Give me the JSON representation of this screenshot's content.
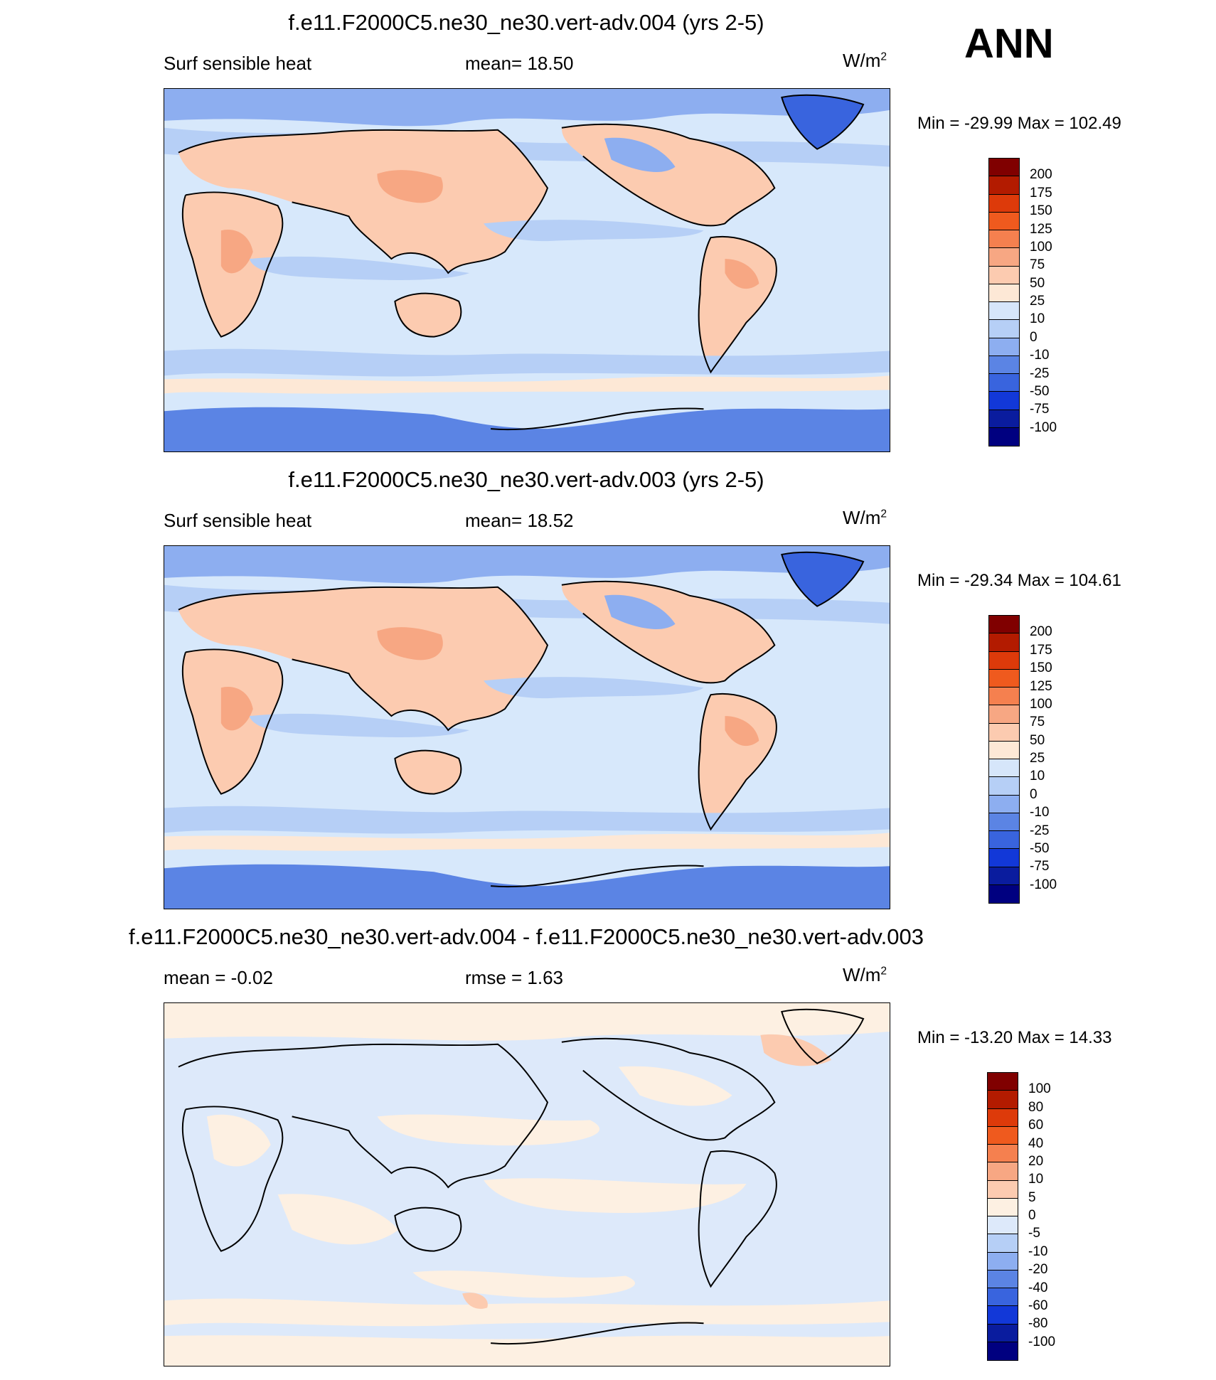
{
  "season": "ANN",
  "panels": [
    {
      "title": "f.e11.F2000C5.ne30_ne30.vert-adv.004 (yrs 2-5)",
      "left_label": "Surf sensible heat",
      "center_label": "mean=  18.50",
      "units": "W/m",
      "units_sup": "2",
      "minmax": "Min = -29.99 Max = 102.49",
      "colorbar": {
        "labels": [
          "200",
          "175",
          "150",
          "125",
          "100",
          "75",
          "50",
          "25",
          "10",
          "0",
          "-10",
          "-25",
          "-50",
          "-75",
          "-100"
        ],
        "colors": [
          "#800000",
          "#b31b00",
          "#dd3a0a",
          "#ef5a1e",
          "#f5804f",
          "#f7a783",
          "#fccbb0",
          "#fde8d6",
          "#d6e6fa",
          "#b6cff6",
          "#8daef0",
          "#5b84e4",
          "#3964de",
          "#1238d8",
          "#0a1c9e",
          "#000080"
        ]
      }
    },
    {
      "title": "f.e11.F2000C5.ne30_ne30.vert-adv.003 (yrs 2-5)",
      "left_label": "Surf sensible heat",
      "center_label": "mean=  18.52",
      "units": "W/m",
      "units_sup": "2",
      "minmax": "Min = -29.34 Max = 104.61",
      "colorbar": {
        "labels": [
          "200",
          "175",
          "150",
          "125",
          "100",
          "75",
          "50",
          "25",
          "10",
          "0",
          "-10",
          "-25",
          "-50",
          "-75",
          "-100"
        ],
        "colors": [
          "#800000",
          "#b31b00",
          "#dd3a0a",
          "#ef5a1e",
          "#f5804f",
          "#f7a783",
          "#fccbb0",
          "#fde8d6",
          "#d6e6fa",
          "#b6cff6",
          "#8daef0",
          "#5b84e4",
          "#3964de",
          "#1238d8",
          "#0a1c9e",
          "#000080"
        ]
      }
    },
    {
      "title": "f.e11.F2000C5.ne30_ne30.vert-adv.004 - f.e11.F2000C5.ne30_ne30.vert-adv.003",
      "left_label": "mean =  -0.02",
      "center_label": "rmse =   1.63",
      "units": "W/m",
      "units_sup": "2",
      "minmax": "Min = -13.20 Max =  14.33",
      "colorbar": {
        "labels": [
          "100",
          "80",
          "60",
          "40",
          "20",
          "10",
          "5",
          "0",
          "-5",
          "-10",
          "-20",
          "-40",
          "-60",
          "-80",
          "-100"
        ],
        "colors": [
          "#800000",
          "#b31b00",
          "#dd3a0a",
          "#ef5a1e",
          "#f5804f",
          "#f7a783",
          "#fccbb0",
          "#fdf0e2",
          "#dde9fa",
          "#b6cff6",
          "#8daef0",
          "#5b84e4",
          "#3964de",
          "#1238d8",
          "#0a1c9e",
          "#000080"
        ]
      }
    }
  ]
}
